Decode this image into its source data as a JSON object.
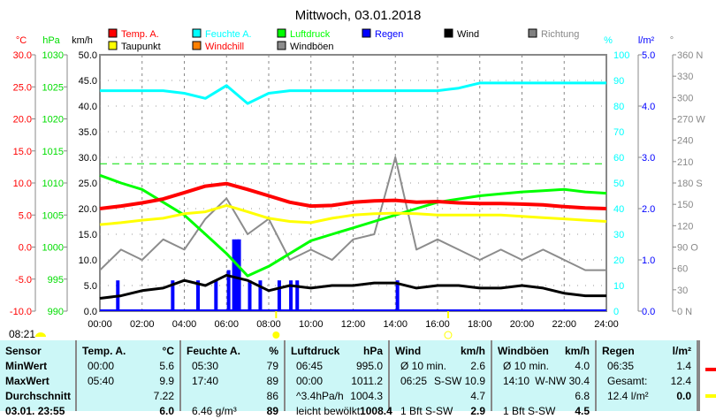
{
  "chart_data": {
    "type": "line",
    "title": "Mittwoch, 03.01.2018",
    "legend": [
      {
        "label": "Temp. A.",
        "color": "#ff0000"
      },
      {
        "label": "Feuchte A.",
        "color": "#00ffff"
      },
      {
        "label": "Luftdruck",
        "color": "#00ff00"
      },
      {
        "label": "Regen",
        "color": "#0000ff"
      },
      {
        "label": "Wind",
        "color": "#000000"
      },
      {
        "label": "Richtung",
        "color": "#808080"
      },
      {
        "label": "Taupunkt",
        "color": "#ffff00"
      },
      {
        "label": "Windchill",
        "color": "#ff8000"
      },
      {
        "label": "Windböen",
        "color": "#8c8c8c"
      }
    ],
    "axes": {
      "temp": {
        "unit": "°C",
        "range": [
          -10,
          30
        ],
        "ticks": [
          "30.0",
          "25.0",
          "20.0",
          "15.0",
          "10.0",
          "5.0",
          "0.0",
          "-5.0",
          "-10.0"
        ]
      },
      "pressure": {
        "unit": "hPa",
        "range": [
          990,
          1030
        ],
        "ticks": [
          "1030",
          "1025",
          "1020",
          "1015",
          "1010",
          "1005",
          "1000",
          "995",
          "990"
        ]
      },
      "wind": {
        "unit": "km/h",
        "range": [
          0,
          50
        ],
        "ticks": [
          "50.0",
          "45.0",
          "40.0",
          "35.0",
          "30.0",
          "25.0",
          "20.0",
          "15.0",
          "10.0",
          "5.0",
          "0.0"
        ]
      },
      "humidity": {
        "unit": "%",
        "range": [
          0,
          100
        ],
        "ticks": [
          "100",
          "90",
          "80",
          "70",
          "60",
          "50",
          "40",
          "30",
          "20",
          "10",
          "0"
        ]
      },
      "rain": {
        "unit": "l/m²",
        "range": [
          0,
          5
        ],
        "ticks": [
          "5.0",
          "4.0",
          "3.0",
          "2.0",
          "1.0",
          "0.0"
        ]
      },
      "direction": {
        "unit": "°",
        "range": [
          0,
          360
        ],
        "ticks": [
          "360 N",
          "330",
          "300",
          "270 W",
          "240",
          "210",
          "180 S",
          "150",
          "120",
          "90  O",
          "60",
          "30",
          "0   N"
        ]
      },
      "x": {
        "range": [
          0,
          24
        ],
        "ticks": [
          "00:00",
          "02:00",
          "04:00",
          "06:00",
          "08:00",
          "10:00",
          "12:00",
          "14:00",
          "16:00",
          "18:00",
          "20:00",
          "22:00",
          "24:00"
        ]
      }
    },
    "hours": [
      0,
      1,
      2,
      3,
      4,
      5,
      6,
      7,
      8,
      9,
      10,
      11,
      12,
      13,
      14,
      15,
      16,
      17,
      18,
      19,
      20,
      21,
      22,
      23,
      24
    ],
    "series": [
      {
        "name": "Temp. A.",
        "values": [
          6.0,
          6.4,
          6.9,
          7.5,
          8.5,
          9.5,
          9.9,
          9.0,
          8.0,
          7.0,
          6.4,
          6.5,
          7.0,
          7.2,
          7.3,
          7.0,
          7.1,
          6.9,
          6.8,
          6.8,
          6.7,
          6.6,
          6.3,
          6.1,
          6.0
        ]
      },
      {
        "name": "Taupunkt",
        "values": [
          3.5,
          3.8,
          4.2,
          4.5,
          5.2,
          5.5,
          6.5,
          5.5,
          4.5,
          4.0,
          3.8,
          4.5,
          5.0,
          5.2,
          5.3,
          5.2,
          5.0,
          5.0,
          5.0,
          5.0,
          4.8,
          4.6,
          4.4,
          4.2,
          4.0
        ]
      },
      {
        "name": "Feuchte A.",
        "values": [
          86,
          86,
          86,
          86,
          85,
          83,
          88,
          81,
          85,
          86,
          86,
          86,
          86,
          86,
          86,
          86,
          86,
          87,
          89,
          89,
          89,
          89,
          89,
          89,
          89
        ]
      },
      {
        "name": "Luftdruck",
        "values": [
          1011.2,
          1010,
          1009,
          1007,
          1005,
          1002,
          999,
          995.5,
          997,
          999,
          1001,
          1002,
          1003,
          1004,
          1005,
          1006,
          1007,
          1007.5,
          1008,
          1008.3,
          1008.6,
          1008.8,
          1009,
          1008.6,
          1008.4
        ]
      },
      {
        "name": "Wind",
        "values": [
          2.5,
          3,
          4,
          4.5,
          6,
          5,
          7,
          6,
          4,
          5,
          4.5,
          5,
          5,
          5.5,
          5.5,
          4.5,
          5,
          5,
          4.5,
          4.5,
          5,
          4.5,
          3.5,
          3,
          3
        ]
      },
      {
        "name": "Windböen",
        "values": [
          8,
          12,
          10,
          14,
          12,
          18,
          22,
          15,
          18,
          10,
          12,
          10,
          14,
          15,
          30,
          12,
          14,
          12,
          10,
          12,
          10,
          12,
          10,
          8,
          8
        ]
      }
    ],
    "rain": {
      "times": [
        0.85,
        3.45,
        4.65,
        5.5,
        6.1,
        6.35,
        6.5,
        6.6,
        7.1,
        7.6,
        8.5,
        9.05,
        9.35,
        14.1
      ],
      "values": [
        0.6,
        0.6,
        0.6,
        0.6,
        0.8,
        1.4,
        1.4,
        1.4,
        0.6,
        0.6,
        0.6,
        0.6,
        0.6,
        0.6
      ]
    },
    "reference_pressure": 1013
  },
  "sunrise": "08:21",
  "table": {
    "sensor": {
      "head": "Sensor",
      "rows": [
        "MinWert",
        "MaxWert",
        "Durchschnitt",
        "03.01. 23:55"
      ]
    },
    "temp": {
      "head": "Temp. A.",
      "unit": "°C",
      "rows": [
        [
          "00:00",
          "5.6"
        ],
        [
          "05:40",
          "9.9"
        ],
        [
          "",
          "7.22"
        ],
        [
          "",
          "6.0"
        ]
      ]
    },
    "hum": {
      "head": "Feuchte A.",
      "unit": "%",
      "rows": [
        [
          "05:30",
          "79"
        ],
        [
          "17:40",
          "89"
        ],
        [
          "",
          "86"
        ],
        [
          "6.46 g/m³",
          "89"
        ]
      ]
    },
    "press": {
      "head": "Luftdruck",
      "unit": "hPa",
      "rows": [
        [
          "06:45",
          "995.0"
        ],
        [
          "00:00",
          "1011.2"
        ],
        [
          "^3.4hPa/h",
          "1004.3"
        ],
        [
          "leicht bewölkt",
          "1008.4"
        ]
      ]
    },
    "wind": {
      "head": "Wind",
      "unit": "km/h",
      "rows": [
        [
          "Ø 10 min.",
          "2.6"
        ],
        [
          "06:25",
          "S-SW 10.9"
        ],
        [
          "",
          "4.7"
        ],
        [
          "1 Bft S-SW",
          "2.9"
        ]
      ]
    },
    "gust": {
      "head": "Windböen",
      "unit": "km/h",
      "rows": [
        [
          "Ø 10 min.",
          "4.0"
        ],
        [
          "14:10",
          "W-NW 30.4"
        ],
        [
          "",
          "6.8"
        ],
        [
          "1 Bft S-SW",
          "4.5"
        ]
      ]
    },
    "rain": {
      "head": "Regen",
      "unit": "l/m²",
      "rows": [
        [
          "",
          ""
        ],
        [
          "06:35",
          "1.4"
        ],
        [
          "Gesamt:",
          "12.4"
        ],
        [
          "12.4 l/m²",
          "0.0"
        ]
      ]
    }
  }
}
